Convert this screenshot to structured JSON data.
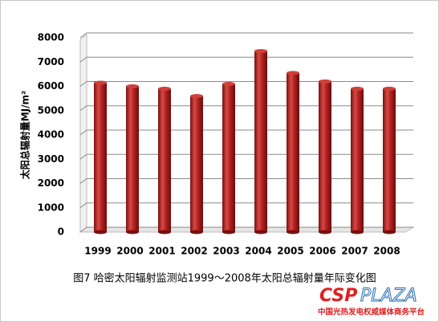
{
  "chart_data": {
    "type": "bar",
    "ylabel": "太阳总辐射量MJ/m²",
    "caption": "图7 哈密太阳辐射监测站1999～2008年太阳总辐射量年际变化图",
    "categories": [
      "1999",
      "2000",
      "2001",
      "2002",
      "2003",
      "2004",
      "2005",
      "2006",
      "2007",
      "2008"
    ],
    "values": [
      6150,
      6000,
      5900,
      5600,
      6100,
      7450,
      6550,
      6200,
      5900,
      5900
    ],
    "color": "#b22222",
    "ylim": [
      0,
      8000
    ],
    "yticks": [
      0,
      1000,
      2000,
      3000,
      4000,
      5000,
      6000,
      7000,
      8000
    ],
    "grid": true
  },
  "watermark": {
    "brand_a": "CSP",
    "brand_b": "PLAZA",
    "tagline": "中国光热发电权威媒体商务平台"
  }
}
